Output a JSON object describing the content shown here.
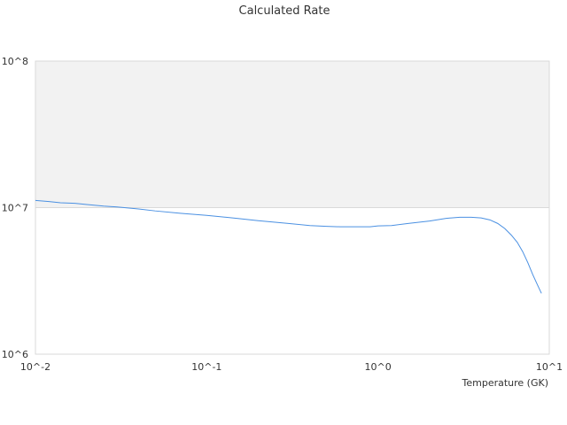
{
  "chart_data": {
    "type": "line",
    "title": "Calculated Rate",
    "xlabel": "Temperature (GK)",
    "ylabel": "",
    "x_scale": "log",
    "y_scale": "log",
    "xlim": [
      0.01,
      10
    ],
    "ylim": [
      1000000,
      100000000
    ],
    "x_ticks": [
      {
        "value": 0.01,
        "label": "10^-2"
      },
      {
        "value": 0.1,
        "label": "10^-1"
      },
      {
        "value": 1,
        "label": "10^0"
      },
      {
        "value": 10,
        "label": "10^1"
      }
    ],
    "y_ticks": [
      {
        "value": 1000000,
        "label": "10^6"
      },
      {
        "value": 10000000,
        "label": "10^7"
      },
      {
        "value": 100000000,
        "label": "10^8"
      }
    ],
    "shaded_band": {
      "from": 10000000,
      "to": 100000000,
      "color": "#f2f2f2"
    },
    "grid": true,
    "series": [
      {
        "color": "#4a90e2",
        "x": [
          0.01,
          0.012,
          0.014,
          0.017,
          0.02,
          0.025,
          0.03,
          0.04,
          0.05,
          0.07,
          0.1,
          0.15,
          0.2,
          0.3,
          0.4,
          0.5,
          0.6,
          0.7,
          0.8,
          0.9,
          1.0,
          1.2,
          1.5,
          2.0,
          2.5,
          3.0,
          3.5,
          4.0,
          4.5,
          5.0,
          5.5,
          6.0,
          6.5,
          7.0,
          7.5,
          8.0,
          8.5,
          9.0
        ],
        "y": [
          11200000,
          11000000,
          10800000,
          10700000,
          10500000,
          10250000,
          10100000,
          9800000,
          9500000,
          9150000,
          8850000,
          8450000,
          8150000,
          7800000,
          7550000,
          7450000,
          7400000,
          7400000,
          7400000,
          7400000,
          7500000,
          7550000,
          7800000,
          8100000,
          8450000,
          8600000,
          8600000,
          8500000,
          8250000,
          7800000,
          7200000,
          6500000,
          5800000,
          5000000,
          4200000,
          3500000,
          3000000,
          2600000
        ]
      }
    ]
  }
}
